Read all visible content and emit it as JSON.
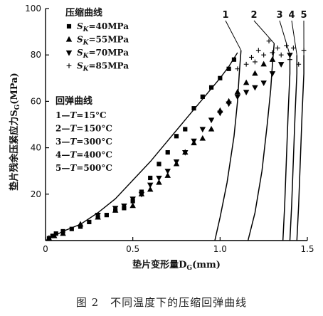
{
  "chart_data": {
    "type": "scatter",
    "xlabel": "垫片变形量D",
    "xlabel_sub": "G",
    "xlabel_unit": "(mm)",
    "ylabel": "垫片残余压紧应力S",
    "ylabel_sub": "G",
    "ylabel_unit": "(MPa)",
    "xlim": [
      0,
      1.5
    ],
    "ylim": [
      0,
      100
    ],
    "xticks": [
      0,
      0.5,
      1.0,
      1.5
    ],
    "xtick_labels": [
      "0",
      "0.5",
      "1.0",
      "1.5"
    ],
    "yticks": [
      20,
      40,
      60,
      80,
      100
    ],
    "ytick_labels": [
      "20",
      "40",
      "60",
      "80",
      "100"
    ],
    "legend_compress_title": "压缩曲线",
    "legend_rebound_title": "回弹曲线",
    "series": [
      {
        "name": "S",
        "name_sub": "K",
        "name_rest": "=40MPa",
        "marker": "square",
        "x": [
          0.02,
          0.04,
          0.06,
          0.1,
          0.15,
          0.2,
          0.25,
          0.3,
          0.35,
          0.4,
          0.45,
          0.5,
          0.55,
          0.6,
          0.65,
          0.7,
          0.75,
          0.8,
          0.85,
          0.9,
          0.95,
          1.0,
          1.05,
          1.08
        ],
        "y": [
          1,
          2,
          3,
          4,
          5,
          6,
          8,
          10,
          11,
          13,
          14,
          17,
          21,
          27,
          33,
          38,
          45,
          48,
          57,
          62,
          66,
          70,
          74,
          78
        ]
      },
      {
        "name": "S",
        "name_sub": "K",
        "name_rest": "=55MPa",
        "marker": "triangle-up",
        "x": [
          0.02,
          0.05,
          0.1,
          0.2,
          0.3,
          0.4,
          0.5,
          0.55,
          0.6,
          0.65,
          0.7,
          0.75,
          0.8,
          0.85,
          0.9,
          0.95,
          1.0,
          1.05,
          1.1,
          1.15,
          1.2,
          1.25,
          1.3
        ],
        "y": [
          1,
          2,
          3,
          7,
          10,
          13,
          15,
          20,
          22,
          25,
          28,
          33,
          38,
          42,
          44,
          48,
          56,
          60,
          64,
          68,
          72,
          76,
          78
        ]
      },
      {
        "name": "S",
        "name_sub": "K",
        "name_rest": "=70MPa",
        "marker": "triangle-down",
        "x": [
          0.3,
          0.4,
          0.45,
          0.5,
          0.55,
          0.6,
          0.65,
          0.7,
          0.75,
          0.8,
          0.85,
          0.9,
          0.95,
          1.0,
          1.05,
          1.1,
          1.15,
          1.2,
          1.25,
          1.3,
          1.35,
          1.4
        ],
        "y": [
          11,
          14,
          15,
          18,
          20,
          24,
          27,
          30,
          34,
          38,
          43,
          48,
          52,
          55,
          59,
          62,
          64,
          66,
          68,
          72,
          76,
          80
        ]
      },
      {
        "name": "S",
        "name_sub": "K",
        "name_rest": "=85MPa",
        "marker": "plus",
        "x": [
          1.1,
          1.15,
          1.18,
          1.2,
          1.22,
          1.25,
          1.28,
          1.3,
          1.33,
          1.35,
          1.38,
          1.4,
          1.42,
          1.45,
          1.48
        ],
        "y": [
          74,
          76,
          79,
          77,
          82,
          80,
          86,
          81,
          83,
          80,
          84,
          78,
          83,
          76,
          82
        ]
      }
    ],
    "rebound_curves": [
      {
        "id": "1",
        "label": "1—T=15°C",
        "t_letter": "T",
        "t_value": "=15°C",
        "x": [
          0.97,
          1.0,
          1.04,
          1.08,
          1.1,
          1.11,
          1.12
        ],
        "y": [
          0,
          10,
          25,
          45,
          60,
          72,
          82
        ]
      },
      {
        "id": "2",
        "label": "2—T=150°C",
        "t_letter": "T",
        "t_value": "=150°C",
        "x": [
          1.16,
          1.2,
          1.24,
          1.27,
          1.29,
          1.3,
          1.31
        ],
        "y": [
          0,
          12,
          30,
          50,
          65,
          76,
          85
        ]
      },
      {
        "id": "3",
        "label": "3—T=300°C",
        "t_letter": "T",
        "t_value": "=300°C",
        "x": [
          1.36,
          1.37,
          1.38,
          1.39,
          1.4,
          1.4
        ],
        "y": [
          0,
          15,
          35,
          55,
          72,
          80
        ]
      },
      {
        "id": "4",
        "label": "4—T=400°C",
        "t_letter": "T",
        "t_value": "=400°C",
        "x": [
          1.4,
          1.41,
          1.42,
          1.43,
          1.44,
          1.44
        ],
        "y": [
          0,
          15,
          35,
          55,
          72,
          80
        ]
      },
      {
        "id": "5",
        "label": "5—T=500°C",
        "t_letter": "T",
        "t_value": "=500°C",
        "x": [
          1.44,
          1.45,
          1.46,
          1.47,
          1.48,
          1.48
        ],
        "y": [
          0,
          15,
          35,
          55,
          72,
          80
        ]
      }
    ],
    "envelope": {
      "x": [
        0,
        0.1,
        0.2,
        0.3,
        0.4,
        0.5,
        0.6,
        0.7,
        0.8,
        0.9,
        1.0,
        1.05,
        1.1
      ],
      "y": [
        0,
        4,
        7,
        12,
        18,
        26,
        34,
        43,
        52,
        61,
        70,
        75,
        81
      ]
    },
    "legend_placement": "top-left",
    "grid": false
  },
  "caption": "图 2　不同温度下的压缩回弹曲线"
}
